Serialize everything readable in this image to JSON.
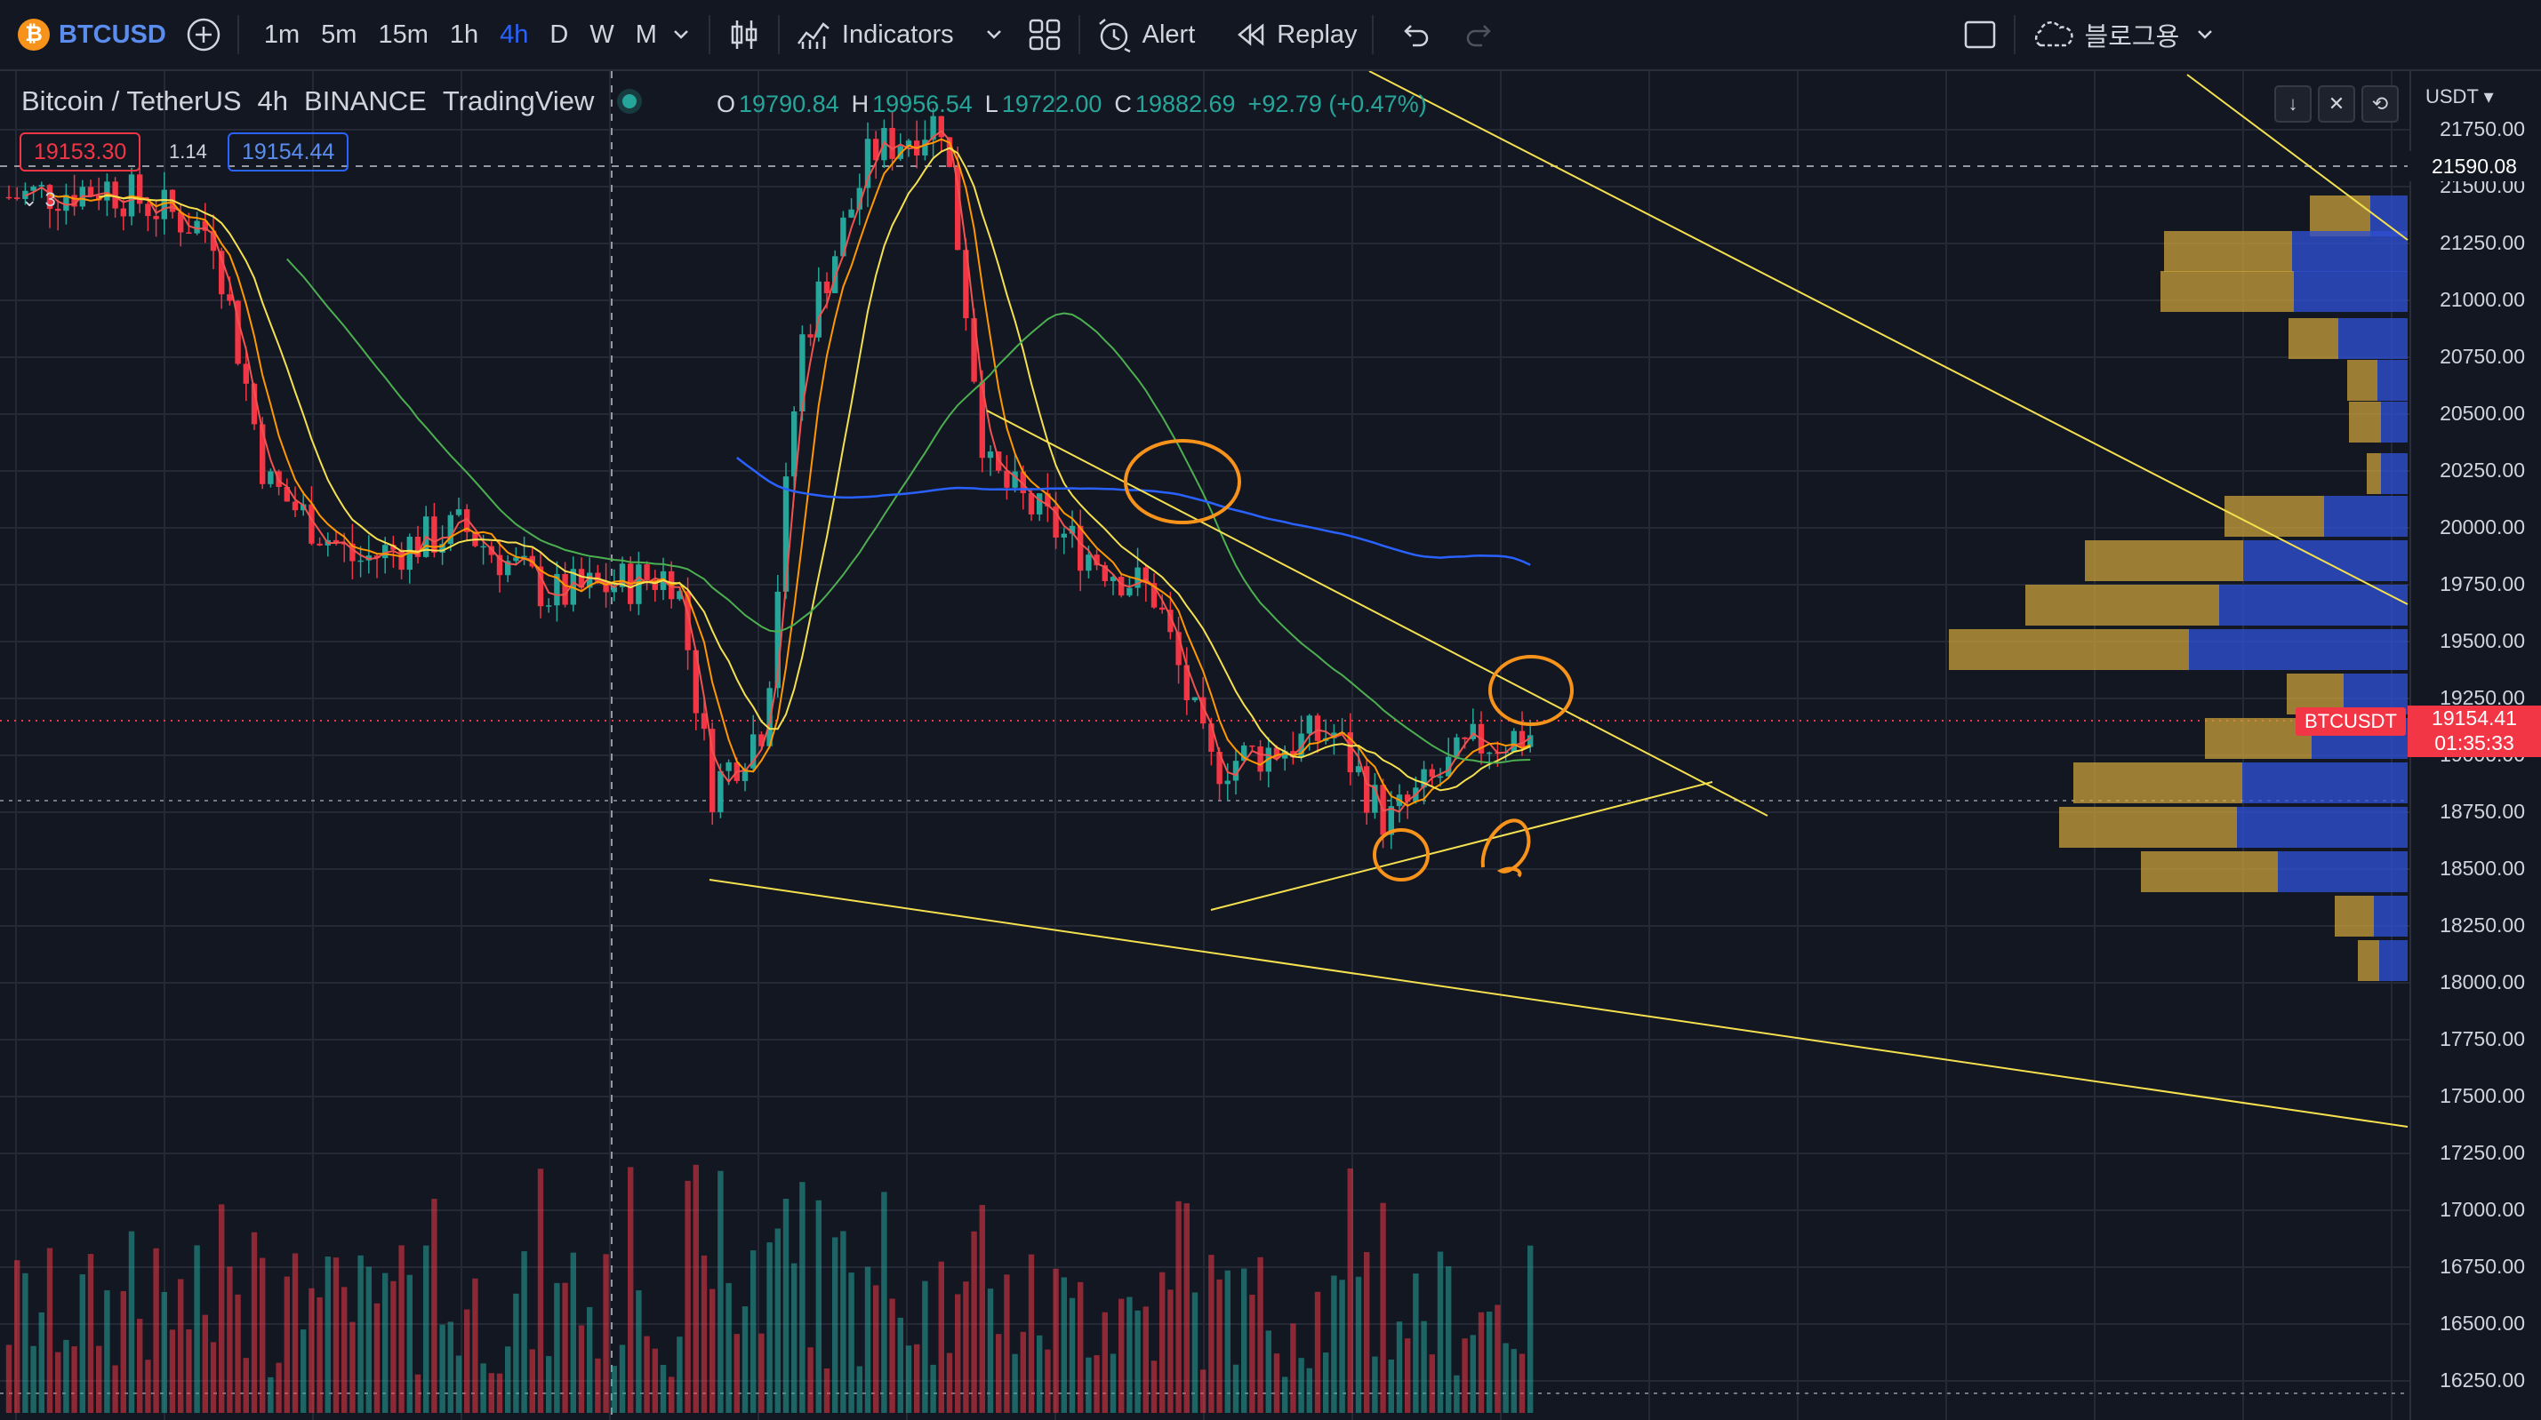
{
  "toolbar": {
    "symbol": "BTCUSD",
    "coin_glyph": "₿",
    "intervals": [
      "1m",
      "5m",
      "15m",
      "1h",
      "4h",
      "D",
      "W",
      "M"
    ],
    "active_interval": "4h",
    "indicators_label": "Indicators",
    "alert_label": "Alert",
    "replay_label": "Replay",
    "cloud_label": "블로그용"
  },
  "legend": {
    "title": "Bitcoin / TetherUS",
    "interval": "4h",
    "exchange": "BINANCE",
    "source": "TradingView",
    "o_key": "O",
    "o_val": "19790.84",
    "h_key": "H",
    "h_val": "19956.54",
    "l_key": "L",
    "l_val": "19722.00",
    "c_key": "C",
    "c_val": "19882.69",
    "change": "+92.79 (+0.47%)",
    "sell_price": "19153.30",
    "spread": "1.14",
    "buy_price": "19154.44",
    "collapsed_count": "3"
  },
  "price_axis": {
    "unit": "USDT",
    "ticks": [
      "21750.00",
      "21500.00",
      "21250.00",
      "21000.00",
      "20750.00",
      "20500.00",
      "20250.00",
      "20000.00",
      "19750.00",
      "19500.00",
      "19250.00",
      "19000.00",
      "18750.00",
      "18500.00",
      "18250.00",
      "18000.00",
      "17750.00",
      "17500.00",
      "17250.00",
      "17000.00",
      "16750.00",
      "16500.00",
      "16250.00"
    ],
    "mark_price": "21590.08",
    "last_price": "19154.41",
    "countdown": "01:35:33",
    "symbol_tag": "BTCUSDT"
  },
  "colors": {
    "background": "#131722",
    "up": "#26a69a",
    "down": "#f23645",
    "accent": "#2962ff",
    "trendline": "#f5e050",
    "annotation": "#f7931a",
    "vp_up": "#c9a13a",
    "vp_down": "#2f4fd0"
  },
  "icons": [
    "bitcoin-icon",
    "add-symbol-icon",
    "chevron-down-icon",
    "candle-type-icon",
    "indicators-icon",
    "layout-grid-icon",
    "alert-clock-icon",
    "replay-icon",
    "undo-icon",
    "redo-icon",
    "fullscreen-icon",
    "cloud-icon"
  ]
}
